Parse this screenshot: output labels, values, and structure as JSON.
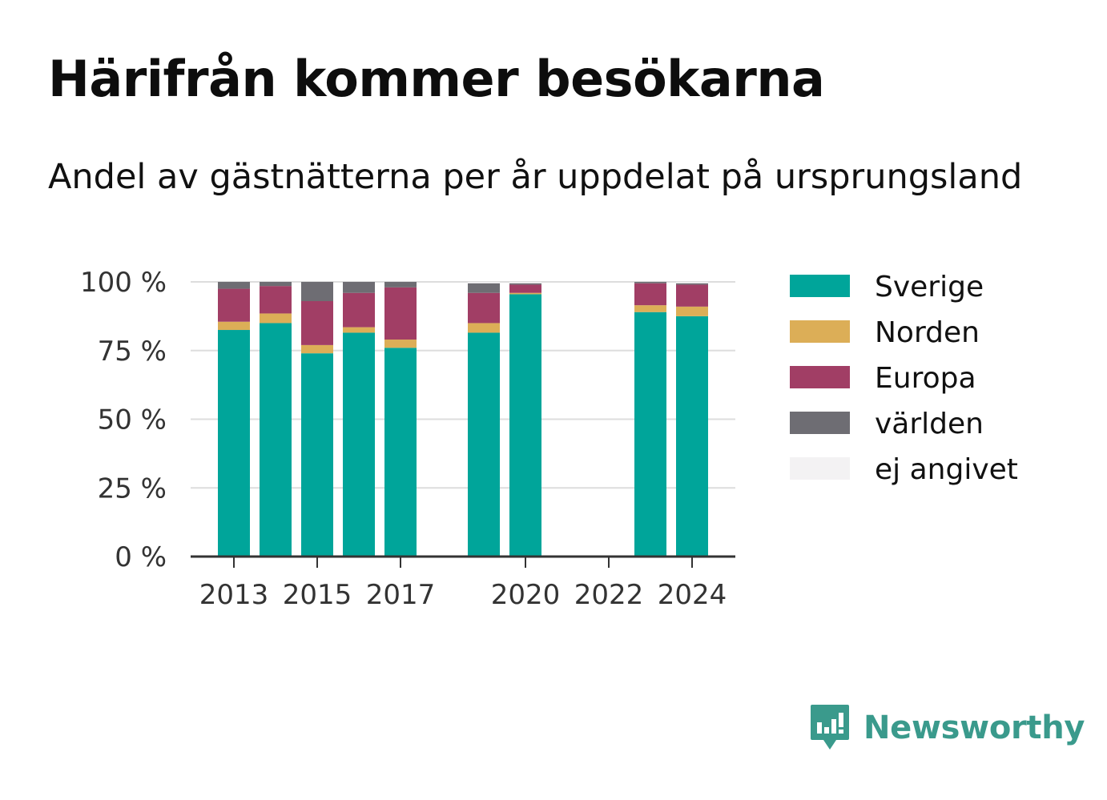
{
  "header": {
    "title": "Härifrån kommer besökarna",
    "subtitle": "Andel av gästnätterna per år uppdelat på ursprungsland"
  },
  "brand": {
    "name": "Newsworthy",
    "color": "#3a9a8c"
  },
  "chart_data": {
    "type": "bar",
    "stacked": true,
    "title": "Härifrån kommer besökarna",
    "subtitle": "Andel av gästnätterna per år uppdelat på ursprungsland",
    "x": [
      2013,
      2014,
      2015,
      2016,
      2017,
      2018,
      2019,
      2020,
      2021,
      2022,
      2023,
      2024
    ],
    "x_tick_labels": [
      "2013",
      "2015",
      "2017",
      "2020",
      "2022",
      "2024"
    ],
    "x_tick_values": [
      2013,
      2015,
      2017,
      2020,
      2022,
      2024
    ],
    "y_tick_labels": [
      "0 %",
      "25 %",
      "50 %",
      "75 %",
      "100 %"
    ],
    "y_tick_values": [
      0,
      25,
      50,
      75,
      100
    ],
    "ylim": [
      0,
      100
    ],
    "grid": true,
    "legend_position": "right",
    "series": [
      {
        "name": "Sverige",
        "color": "#00a59a",
        "values": [
          82.5,
          85,
          74,
          81.5,
          76,
          null,
          81.5,
          95.5,
          null,
          null,
          89,
          87.5
        ]
      },
      {
        "name": "Norden",
        "color": "#dcae57",
        "values": [
          3,
          3.5,
          3,
          2,
          3,
          null,
          3.5,
          0.5,
          null,
          null,
          2.5,
          3.5
        ]
      },
      {
        "name": "Europa",
        "color": "#a13e65",
        "values": [
          12,
          10,
          16,
          12.5,
          19,
          null,
          11,
          3,
          null,
          null,
          8,
          8
        ]
      },
      {
        "name": "världen",
        "color": "#6e6d73",
        "values": [
          2.5,
          1.5,
          7,
          4,
          2,
          null,
          3.5,
          0.5,
          null,
          null,
          0.5,
          0.5
        ]
      },
      {
        "name": "ej angivet",
        "color": "#f3f2f3",
        "values": [
          0,
          0,
          0,
          0,
          0,
          null,
          0.5,
          0.5,
          null,
          null,
          0,
          0.5
        ]
      }
    ]
  }
}
